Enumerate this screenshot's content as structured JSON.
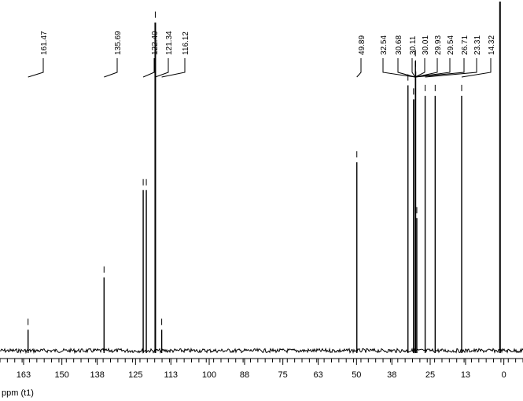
{
  "chart_data": {
    "type": "line",
    "xlabel": "ppm (t1)",
    "xlim": [
      171.0,
      -6.5
    ],
    "x_direction": "reversed",
    "grid": false,
    "legend": "none",
    "x_major_ticks": [
      163,
      150,
      138,
      125,
      113,
      100,
      88,
      75,
      63,
      50,
      38,
      25,
      13,
      0
    ],
    "x_tick_labels": [
      "163",
      "150",
      "138",
      "125",
      "113",
      "100",
      "88",
      "75",
      "63",
      "50",
      "38",
      "25",
      "13",
      "0"
    ],
    "peak_labels": [
      "161.47",
      "135.69",
      "122.40",
      "121.34",
      "116.12",
      "49.89",
      "32.54",
      "30.68",
      "30.11",
      "30.01",
      "29.93",
      "29.54",
      "26.71",
      "23.31",
      "14.32"
    ],
    "peaks": [
      {
        "ppm": 161.47,
        "intensity": 0.06
      },
      {
        "ppm": 135.69,
        "intensity": 0.21
      },
      {
        "ppm": 122.4,
        "intensity": 0.46
      },
      {
        "ppm": 121.34,
        "intensity": 0.46
      },
      {
        "ppm": 118.3,
        "intensity": 0.94
      },
      {
        "ppm": 116.12,
        "intensity": 0.06
      },
      {
        "ppm": 49.89,
        "intensity": 0.54
      },
      {
        "ppm": 32.54,
        "intensity": 0.76
      },
      {
        "ppm": 30.68,
        "intensity": 0.72
      },
      {
        "ppm": 30.11,
        "intensity": 0.72
      },
      {
        "ppm": 30.01,
        "intensity": 0.83
      },
      {
        "ppm": 29.93,
        "intensity": 0.8
      },
      {
        "ppm": 29.54,
        "intensity": 0.38
      },
      {
        "ppm": 26.71,
        "intensity": 0.73
      },
      {
        "ppm": 23.31,
        "intensity": 0.73
      },
      {
        "ppm": 14.32,
        "intensity": 0.73
      },
      {
        "ppm": 1.3,
        "intensity": 1.0
      }
    ],
    "line_color": "#000000"
  }
}
